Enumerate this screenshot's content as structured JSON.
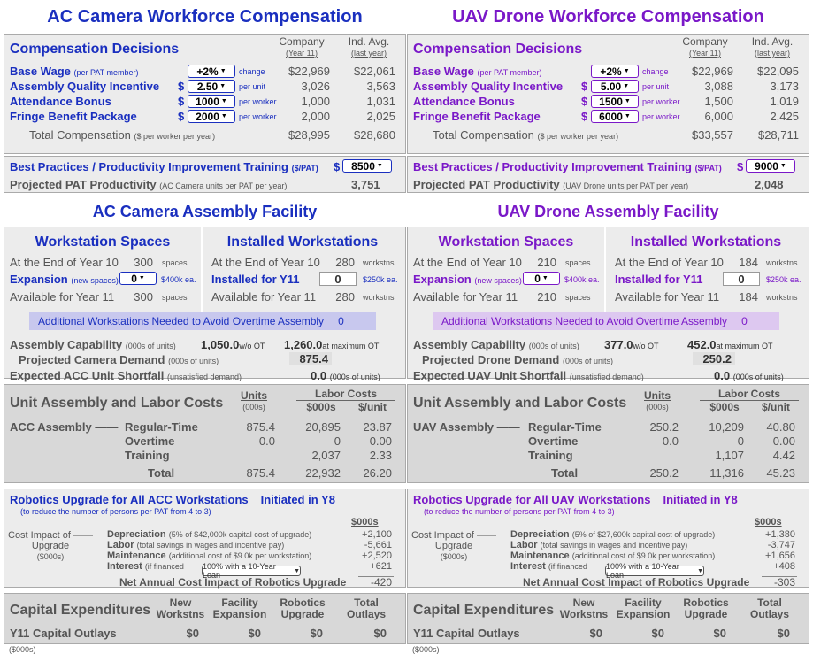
{
  "ac": {
    "title": "AC Camera Workforce Compensation",
    "comp": {
      "heading": "Compensation Decisions",
      "col1": "Company",
      "col1sub": "(Year 11)",
      "col2": "Ind. Avg.",
      "col2sub": "(last year)",
      "rows": [
        {
          "label": "Base Wage",
          "note": "(per PAT member)",
          "prefix": "",
          "value": "+2%",
          "unit": "change",
          "company": "$22,969",
          "avg": "$22,061"
        },
        {
          "label": "Assembly Quality Incentive",
          "note": "",
          "prefix": "$",
          "value": "2.50",
          "unit": "per unit",
          "company": "3,026",
          "avg": "3,563"
        },
        {
          "label": "Attendance Bonus",
          "note": "",
          "prefix": "$",
          "value": "1000",
          "unit": "per worker",
          "company": "1,000",
          "avg": "1,031"
        },
        {
          "label": "Fringe Benefit Package",
          "note": "",
          "prefix": "$",
          "value": "2000",
          "unit": "per worker",
          "company": "2,000",
          "avg": "2,025"
        }
      ],
      "total_label": "Total Compensation",
      "total_note": "($ per worker per year)",
      "total_company": "$28,995",
      "total_avg": "$28,680",
      "training_label": "Best Practices / Productivity Improvement Training",
      "training_note": "($/PAT)",
      "training_prefix": "$",
      "training_value": "8500",
      "pat_label": "Projected PAT Productivity",
      "pat_note": "(AC Camera units per PAT per year)",
      "pat_value": "3,751"
    },
    "facility_title": "AC Camera Assembly Facility",
    "ws": {
      "spaces_heading": "Workstation Spaces",
      "installed_heading": "Installed Workstations",
      "end_label": "At the End of Year 10",
      "end_spaces": "300",
      "spaces_unit": "spaces",
      "end_installed": "280",
      "installed_unit": "workstns",
      "expansion_label": "Expansion",
      "expansion_note": "(new spaces)",
      "expansion_value": "0",
      "expansion_cost": "$400k ea.",
      "installed_label": "Installed for Y11",
      "installed_value": "0",
      "installed_cost": "$250k ea.",
      "avail_label": "Available for Year 11",
      "avail_spaces": "300",
      "avail_installed": "280",
      "additional_label": "Additional Workstations Needed to Avoid Overtime Assembly",
      "additional_value": "0",
      "cap_label": "Assembly Capability",
      "cap_note": "(000s of units)",
      "cap_wo": "1,050.0",
      "cap_wo_label": "w/o OT",
      "cap_max": "1,260.0",
      "cap_max_label": "at maximum OT",
      "demand_label": "Projected Camera Demand",
      "demand_note": "(000s of units)",
      "demand_value": "875.4",
      "short_label": "Expected ACC Unit Shortfall",
      "short_note": "(unsatisfied demand)",
      "short_value": "0.0",
      "short_unit": "(000s of units)"
    },
    "labor": {
      "heading": "Unit Assembly and Labor Costs",
      "units_h": "Units",
      "units_sub": "(000s)",
      "lc_h": "Labor Costs",
      "k_h": "$000s",
      "pu_h": "$/unit",
      "group": "ACC Assembly",
      "rows": [
        {
          "label": "Regular-Time",
          "units": "875.4",
          "k": "20,895",
          "pu": "23.87"
        },
        {
          "label": "Overtime",
          "units": "0.0",
          "k": "0",
          "pu": "0.00"
        },
        {
          "label": "Training",
          "units": "",
          "k": "2,037",
          "pu": "2.33"
        }
      ],
      "total_label": "Total",
      "total_units": "875.4",
      "total_k": "22,932",
      "total_pu": "26.20"
    },
    "robot": {
      "heading": "Robotics Upgrade for All ACC Workstations",
      "initiated": "Initiated in Y8",
      "sub": "(to reduce the number of persons per PAT from 4 to 3)",
      "k_h": "$000s",
      "cost_label": "Cost Impact of",
      "cost_label2": "Upgrade",
      "cost_label3": "($000s)",
      "rows": [
        {
          "label": "Depreciation",
          "note": "(5% of $42,000k capital cost of upgrade)",
          "value": "+2,100"
        },
        {
          "label": "Labor",
          "note": "(total savings in wages and incentive pay)",
          "value": "-5,661"
        },
        {
          "label": "Maintenance",
          "note": "(additional cost of $9.0k per workstation)",
          "value": "+2,520"
        },
        {
          "label": "Interest",
          "note": "(if financed",
          "value": "+621"
        }
      ],
      "finance": "100% with a 10-Year Loan",
      "net_label": "Net Annual Cost Impact of Robotics Upgrade",
      "net_value": "-420"
    },
    "capex": {
      "heading": "Capital Expenditures",
      "h1a": "New",
      "h1b": "Workstns",
      "h2a": "Facility",
      "h2b": "Expansion",
      "h3a": "Robotics",
      "h3b": "Upgrade",
      "h4a": "Total",
      "h4b": "Outlays",
      "row_label": "Y11 Capital Outlays",
      "v1": "$0",
      "v2": "$0",
      "v3": "$0",
      "v4": "$0",
      "foot": "($000s)"
    }
  },
  "uav": {
    "title": "UAV Drone Workforce Compensation",
    "comp": {
      "heading": "Compensation Decisions",
      "col1": "Company",
      "col1sub": "(Year 11)",
      "col2": "Ind. Avg.",
      "col2sub": "(last year)",
      "rows": [
        {
          "label": "Base Wage",
          "note": "(per PAT member)",
          "prefix": "",
          "value": "+2%",
          "unit": "change",
          "company": "$22,969",
          "avg": "$22,095"
        },
        {
          "label": "Assembly Quality Incentive",
          "note": "",
          "prefix": "$",
          "value": "5.00",
          "unit": "per unit",
          "company": "3,088",
          "avg": "3,173"
        },
        {
          "label": "Attendance Bonus",
          "note": "",
          "prefix": "$",
          "value": "1500",
          "unit": "per worker",
          "company": "1,500",
          "avg": "1,019"
        },
        {
          "label": "Fringe Benefit Package",
          "note": "",
          "prefix": "$",
          "value": "6000",
          "unit": "per worker",
          "company": "6,000",
          "avg": "2,425"
        }
      ],
      "total_label": "Total Compensation",
      "total_note": "($ per worker per year)",
      "total_company": "$33,557",
      "total_avg": "$28,711",
      "training_label": "Best Practices / Productivity Improvement Training",
      "training_note": "($/PAT)",
      "training_prefix": "$",
      "training_value": "9000",
      "pat_label": "Projected PAT Productivity",
      "pat_note": "(UAV Drone units per PAT per year)",
      "pat_value": "2,048"
    },
    "facility_title": "UAV Drone Assembly Facility",
    "ws": {
      "spaces_heading": "Workstation Spaces",
      "installed_heading": "Installed Workstations",
      "end_label": "At the End of Year 10",
      "end_spaces": "210",
      "spaces_unit": "spaces",
      "end_installed": "184",
      "installed_unit": "workstns",
      "expansion_label": "Expansion",
      "expansion_note": "(new spaces)",
      "expansion_value": "0",
      "expansion_cost": "$400k ea.",
      "installed_label": "Installed for Y11",
      "installed_value": "0",
      "installed_cost": "$250k ea.",
      "avail_label": "Available for Year 11",
      "avail_spaces": "210",
      "avail_installed": "184",
      "additional_label": "Additional Workstations Needed to Avoid Overtime Assembly",
      "additional_value": "0",
      "cap_label": "Assembly Capability",
      "cap_note": "(000s of units)",
      "cap_wo": "377.0",
      "cap_wo_label": "w/o OT",
      "cap_max": "452.0",
      "cap_max_label": "at maximum OT",
      "demand_label": "Projected Drone Demand",
      "demand_note": "(000s of units)",
      "demand_value": "250.2",
      "short_label": "Expected UAV Unit Shortfall",
      "short_note": "(unsatisfied demand)",
      "short_value": "0.0",
      "short_unit": "(000s of units)"
    },
    "labor": {
      "heading": "Unit Assembly and Labor Costs",
      "units_h": "Units",
      "units_sub": "(000s)",
      "lc_h": "Labor Costs",
      "k_h": "$000s",
      "pu_h": "$/unit",
      "group": "UAV Assembly",
      "rows": [
        {
          "label": "Regular-Time",
          "units": "250.2",
          "k": "10,209",
          "pu": "40.80"
        },
        {
          "label": "Overtime",
          "units": "0.0",
          "k": "0",
          "pu": "0.00"
        },
        {
          "label": "Training",
          "units": "",
          "k": "1,107",
          "pu": "4.42"
        }
      ],
      "total_label": "Total",
      "total_units": "250.2",
      "total_k": "11,316",
      "total_pu": "45.23"
    },
    "robot": {
      "heading": "Robotics Upgrade for All UAV Workstations",
      "initiated": "Initiated in Y8",
      "sub": "(to reduce the number of persons per PAT from 4 to 3)",
      "k_h": "$000s",
      "cost_label": "Cost Impact of",
      "cost_label2": "Upgrade",
      "cost_label3": "($000s)",
      "rows": [
        {
          "label": "Depreciation",
          "note": "(5% of $27,600k capital cost of upgrade)",
          "value": "+1,380"
        },
        {
          "label": "Labor",
          "note": "(total savings in wages and incentive pay)",
          "value": "-3,747"
        },
        {
          "label": "Maintenance",
          "note": "(additional cost of $9.0k per workstation)",
          "value": "+1,656"
        },
        {
          "label": "Interest",
          "note": "(if financed",
          "value": "+408"
        }
      ],
      "finance": "100% with a 10-Year Loan",
      "net_label": "Net Annual Cost Impact of Robotics Upgrade",
      "net_value": "-303"
    },
    "capex": {
      "heading": "Capital Expenditures",
      "h1a": "New",
      "h1b": "Workstns",
      "h2a": "Facility",
      "h2b": "Expansion",
      "h3a": "Robotics",
      "h3b": "Upgrade",
      "h4a": "Total",
      "h4b": "Outlays",
      "row_label": "Y11 Capital Outlays",
      "v1": "$0",
      "v2": "$0",
      "v3": "$0",
      "v4": "$0",
      "foot": "($000s)"
    }
  }
}
